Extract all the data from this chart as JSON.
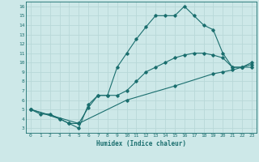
{
  "xlabel": "Humidex (Indice chaleur)",
  "bg_color": "#cde8e8",
  "line_color": "#1a6e6e",
  "grid_color": "#b8d8d8",
  "xlim": [
    -0.5,
    23.5
  ],
  "ylim": [
    2.5,
    16.5
  ],
  "xticks": [
    0,
    1,
    2,
    3,
    4,
    5,
    6,
    7,
    8,
    9,
    10,
    11,
    12,
    13,
    14,
    15,
    16,
    17,
    18,
    19,
    20,
    21,
    22,
    23
  ],
  "yticks": [
    3,
    4,
    5,
    6,
    7,
    8,
    9,
    10,
    11,
    12,
    13,
    14,
    15,
    16
  ],
  "line1": [
    [
      0,
      5
    ],
    [
      1,
      4.5
    ],
    [
      2,
      4.5
    ],
    [
      3,
      4
    ],
    [
      4,
      3.5
    ],
    [
      5,
      3
    ],
    [
      6,
      5.5
    ],
    [
      7,
      6.5
    ],
    [
      8,
      6.5
    ],
    [
      9,
      9.5
    ],
    [
      10,
      11
    ],
    [
      11,
      12.5
    ],
    [
      12,
      13.8
    ],
    [
      13,
      15
    ],
    [
      14,
      15
    ],
    [
      15,
      15
    ],
    [
      16,
      16
    ],
    [
      17,
      15
    ],
    [
      18,
      14
    ],
    [
      19,
      13.5
    ],
    [
      20,
      11
    ],
    [
      21,
      9.5
    ],
    [
      22,
      9.5
    ],
    [
      23,
      9.5
    ]
  ],
  "line2": [
    [
      0,
      5
    ],
    [
      3,
      4
    ],
    [
      4,
      3.5
    ],
    [
      5,
      3.5
    ],
    [
      6,
      5.2
    ],
    [
      7,
      6.5
    ],
    [
      8,
      6.5
    ],
    [
      9,
      6.5
    ],
    [
      10,
      7
    ],
    [
      11,
      8
    ],
    [
      12,
      9
    ],
    [
      13,
      9.5
    ],
    [
      14,
      10
    ],
    [
      15,
      10.5
    ],
    [
      16,
      10.8
    ],
    [
      17,
      11
    ],
    [
      18,
      11
    ],
    [
      19,
      10.8
    ],
    [
      20,
      10.5
    ],
    [
      21,
      9.5
    ],
    [
      22,
      9.5
    ],
    [
      23,
      10
    ]
  ],
  "line3": [
    [
      0,
      5
    ],
    [
      5,
      3.5
    ],
    [
      10,
      6
    ],
    [
      15,
      7.5
    ],
    [
      19,
      8.8
    ],
    [
      20,
      9
    ],
    [
      21,
      9.2
    ],
    [
      22,
      9.5
    ],
    [
      23,
      9.8
    ]
  ]
}
